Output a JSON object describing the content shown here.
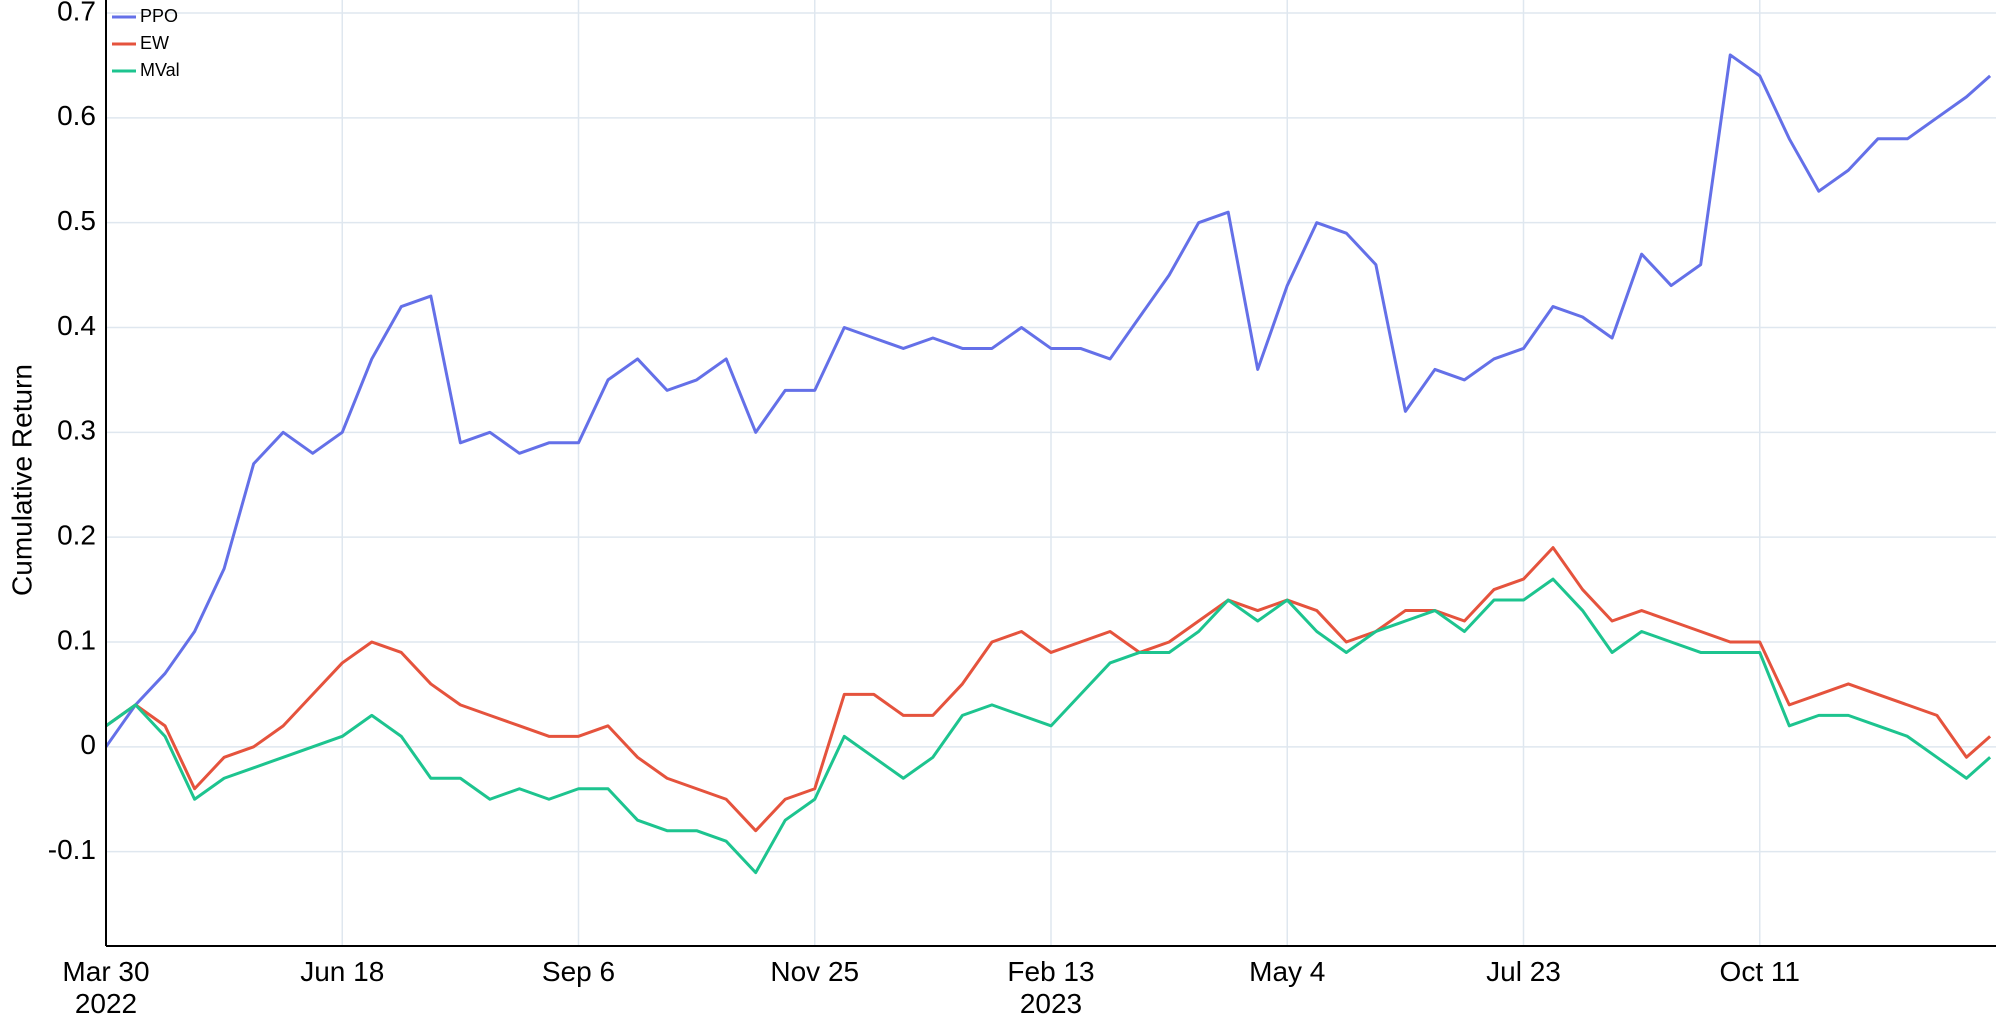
{
  "chart_data": {
    "type": "line",
    "y_label": "Cumulative Return",
    "x": [
      "2022-03-30",
      "2022-04-09",
      "2022-04-19",
      "2022-04-29",
      "2022-05-09",
      "2022-05-19",
      "2022-05-29",
      "2022-06-08",
      "2022-06-18",
      "2022-06-28",
      "2022-07-08",
      "2022-07-18",
      "2022-07-28",
      "2022-08-07",
      "2022-08-17",
      "2022-08-27",
      "2022-09-06",
      "2022-09-16",
      "2022-09-26",
      "2022-10-06",
      "2022-10-16",
      "2022-10-26",
      "2022-11-05",
      "2022-11-15",
      "2022-11-25",
      "2022-12-05",
      "2022-12-15",
      "2022-12-25",
      "2023-01-04",
      "2023-01-14",
      "2023-01-24",
      "2023-02-03",
      "2023-02-13",
      "2023-02-23",
      "2023-03-05",
      "2023-03-15",
      "2023-03-25",
      "2023-04-04",
      "2023-04-14",
      "2023-04-24",
      "2023-05-04",
      "2023-05-14",
      "2023-05-24",
      "2023-06-03",
      "2023-06-13",
      "2023-06-23",
      "2023-07-03",
      "2023-07-13",
      "2023-07-23",
      "2023-08-02",
      "2023-08-12",
      "2023-08-22",
      "2023-09-01",
      "2023-09-11",
      "2023-09-21",
      "2023-10-01",
      "2023-10-11",
      "2023-10-21",
      "2023-10-31",
      "2023-11-10",
      "2023-11-20",
      "2023-11-30",
      "2023-12-10",
      "2023-12-20",
      "2023-12-28"
    ],
    "series": [
      {
        "name": "PPO",
        "color": "#6470e8",
        "values": [
          0.0,
          0.04,
          0.07,
          0.11,
          0.17,
          0.27,
          0.3,
          0.28,
          0.3,
          0.37,
          0.42,
          0.43,
          0.29,
          0.3,
          0.28,
          0.29,
          0.29,
          0.35,
          0.37,
          0.34,
          0.35,
          0.37,
          0.3,
          0.34,
          0.34,
          0.4,
          0.39,
          0.38,
          0.39,
          0.38,
          0.38,
          0.4,
          0.38,
          0.38,
          0.37,
          0.41,
          0.45,
          0.5,
          0.51,
          0.36,
          0.44,
          0.5,
          0.49,
          0.46,
          0.32,
          0.36,
          0.35,
          0.37,
          0.38,
          0.42,
          0.41,
          0.39,
          0.47,
          0.44,
          0.46,
          0.66,
          0.64,
          0.58,
          0.53,
          0.55,
          0.58,
          0.58,
          0.6,
          0.62,
          0.64
        ]
      },
      {
        "name": "EW",
        "color": "#e5533d",
        "values": [
          0.02,
          0.04,
          0.02,
          -0.04,
          -0.01,
          0.0,
          0.02,
          0.05,
          0.08,
          0.1,
          0.09,
          0.06,
          0.04,
          0.03,
          0.02,
          0.01,
          0.01,
          0.02,
          -0.01,
          -0.03,
          -0.04,
          -0.05,
          -0.08,
          -0.05,
          -0.04,
          0.05,
          0.05,
          0.03,
          0.03,
          0.06,
          0.1,
          0.11,
          0.09,
          0.1,
          0.11,
          0.09,
          0.1,
          0.12,
          0.14,
          0.13,
          0.14,
          0.13,
          0.1,
          0.11,
          0.13,
          0.13,
          0.12,
          0.15,
          0.16,
          0.19,
          0.15,
          0.12,
          0.13,
          0.12,
          0.11,
          0.1,
          0.1,
          0.04,
          0.05,
          0.06,
          0.05,
          0.04,
          0.03,
          -0.01,
          0.01
        ]
      },
      {
        "name": "MVal",
        "color": "#1dc48f",
        "values": [
          0.02,
          0.04,
          0.01,
          -0.05,
          -0.03,
          -0.02,
          -0.01,
          0.0,
          0.01,
          0.03,
          0.01,
          -0.03,
          -0.03,
          -0.05,
          -0.04,
          -0.05,
          -0.04,
          -0.04,
          -0.07,
          -0.08,
          -0.08,
          -0.09,
          -0.12,
          -0.07,
          -0.05,
          0.01,
          -0.01,
          -0.03,
          -0.01,
          0.03,
          0.04,
          0.03,
          0.02,
          0.05,
          0.08,
          0.09,
          0.09,
          0.11,
          0.14,
          0.12,
          0.14,
          0.11,
          0.09,
          0.11,
          0.12,
          0.13,
          0.11,
          0.14,
          0.14,
          0.16,
          0.13,
          0.09,
          0.11,
          0.1,
          0.09,
          0.09,
          0.09,
          0.02,
          0.03,
          0.03,
          0.02,
          0.01,
          -0.01,
          -0.03,
          -0.01
        ]
      }
    ],
    "xlim": [
      "2022-03-30",
      "2023-12-30"
    ],
    "xticks": [
      {
        "value": "2022-03-30",
        "label": "Mar 30\n2022"
      },
      {
        "value": "2022-06-18",
        "label": "Jun 18"
      },
      {
        "value": "2022-09-06",
        "label": "Sep 6"
      },
      {
        "value": "2022-11-25",
        "label": "Nov 25"
      },
      {
        "value": "2023-02-13",
        "label": "Feb 13\n2023"
      },
      {
        "value": "2023-05-04",
        "label": "May 4"
      },
      {
        "value": "2023-07-23",
        "label": "Jul 23"
      },
      {
        "value": "2023-10-11",
        "label": "Oct 11"
      }
    ],
    "ylim": [
      -0.19,
      0.7
    ],
    "yticks": [
      -0.1,
      0,
      0.1,
      0.2,
      0.3,
      0.4,
      0.5,
      0.6,
      0.7
    ],
    "grid": true,
    "legend": "top-left"
  }
}
